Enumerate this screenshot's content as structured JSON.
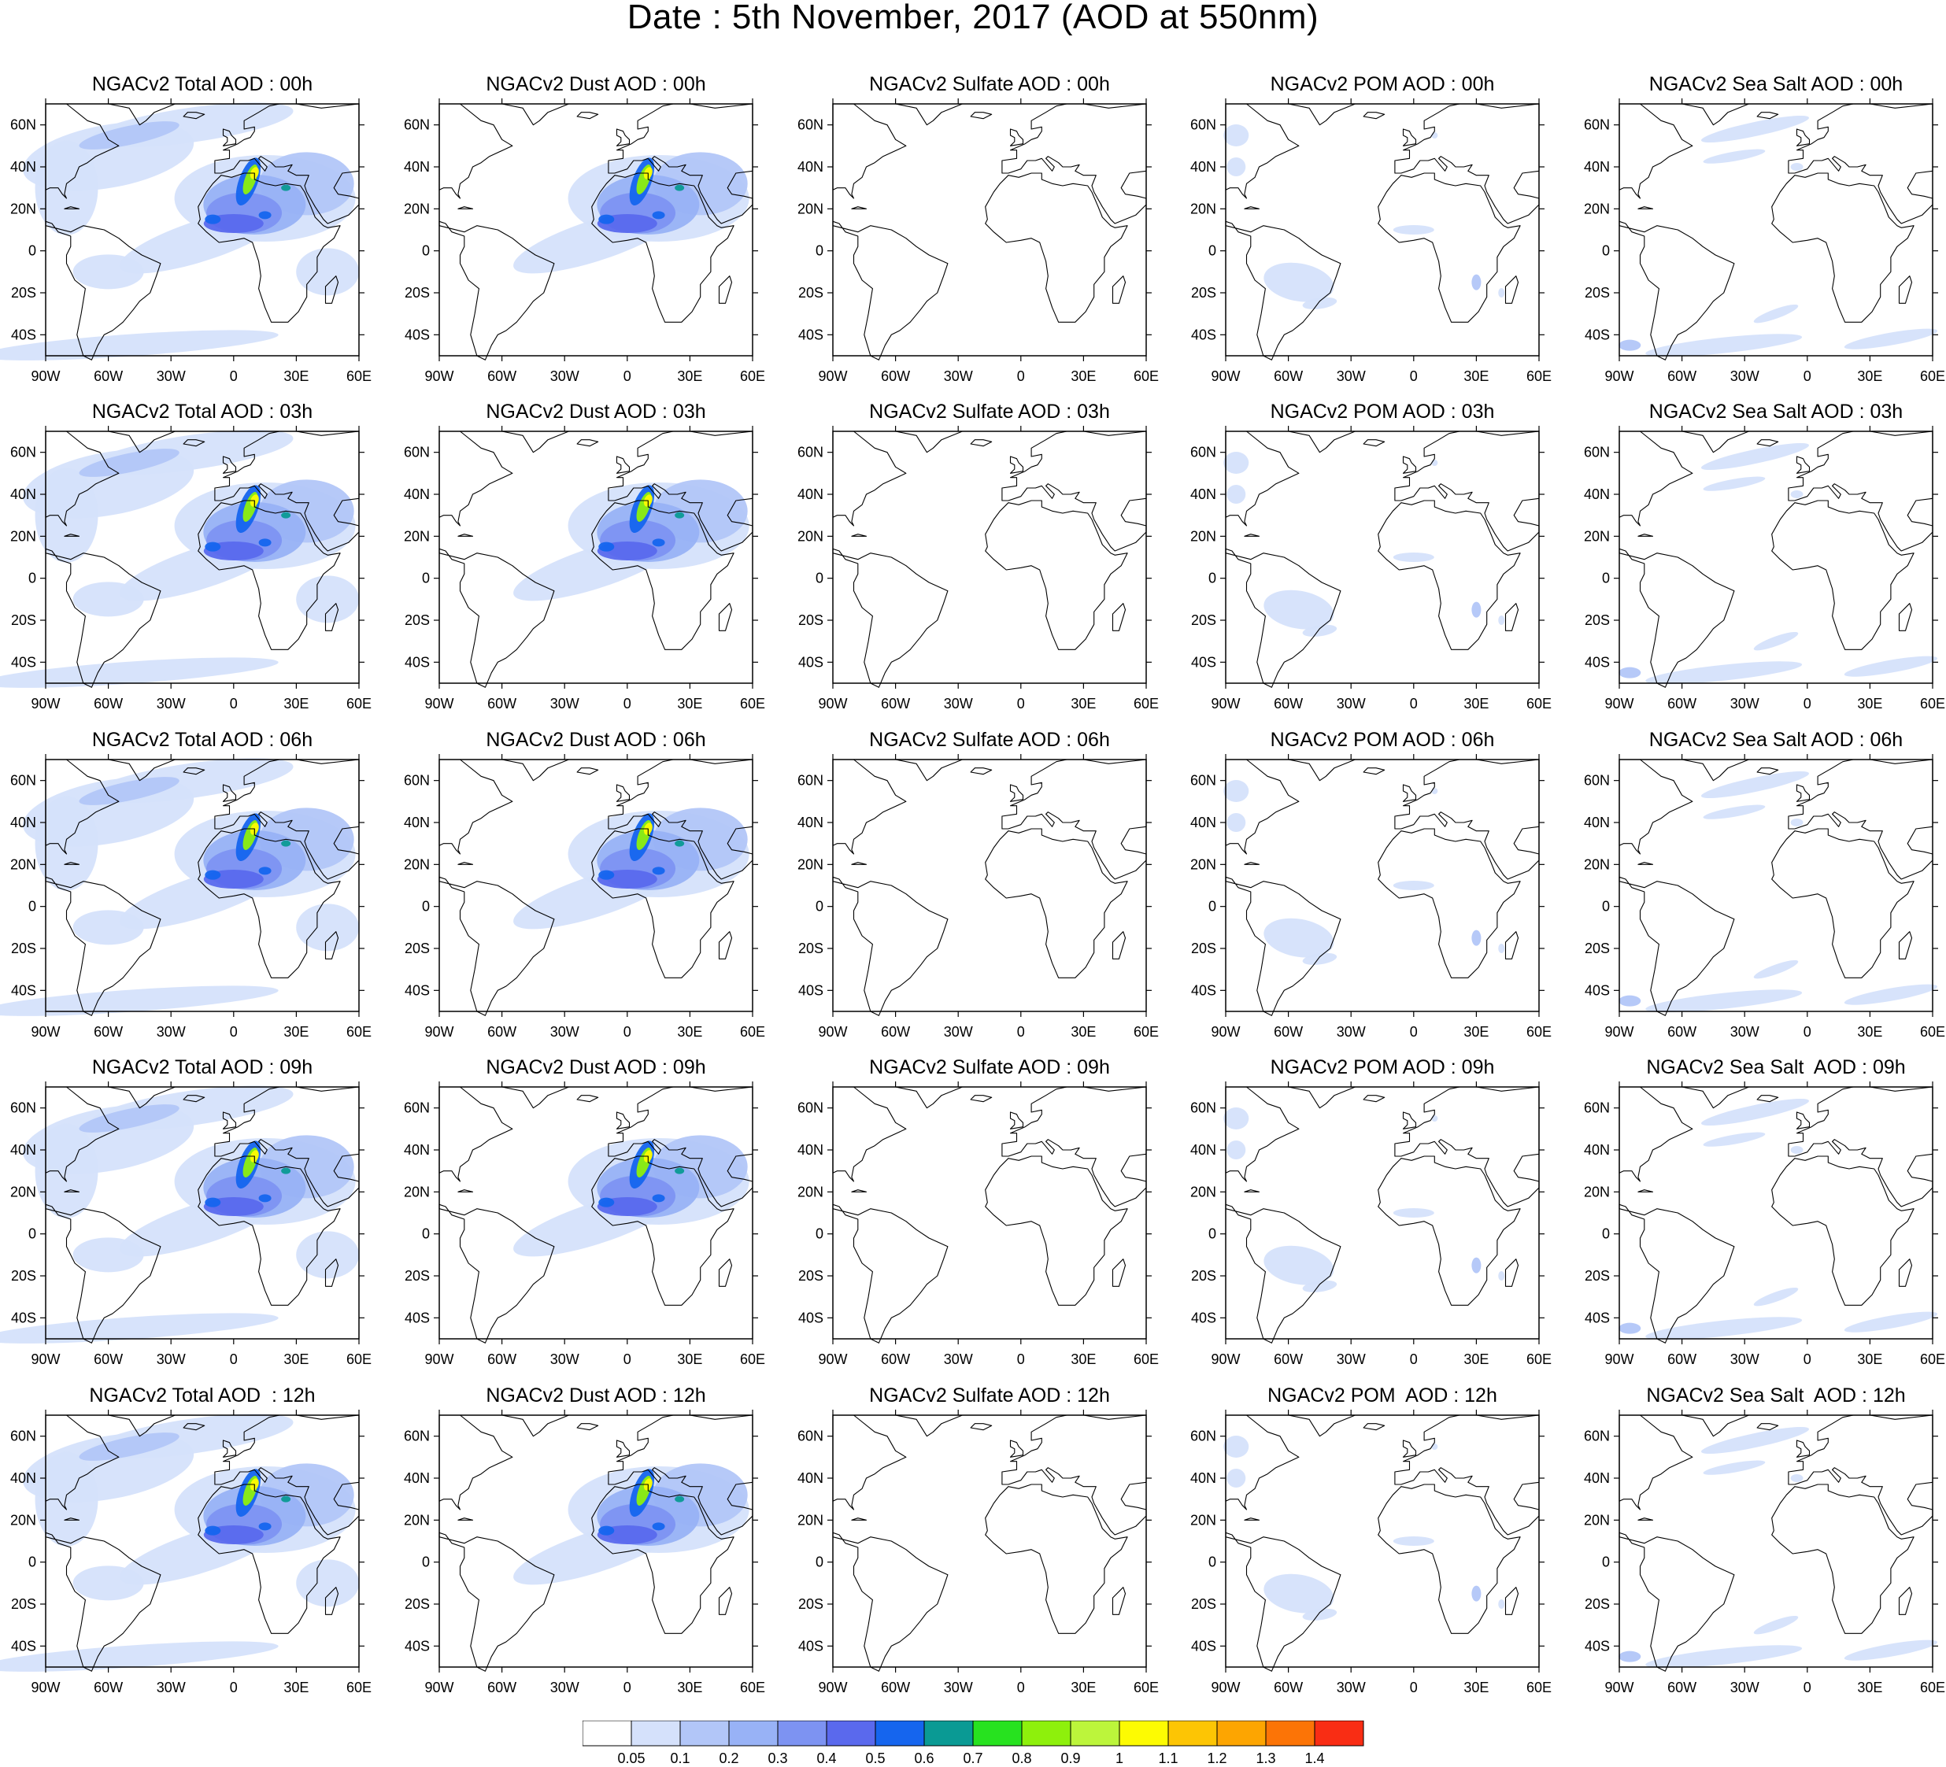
{
  "title": "Date : 5th November, 2017 (AOD at 550nm)",
  "map": {
    "lon_ticks": [
      "90W",
      "60W",
      "30W",
      "0",
      "30E",
      "60E"
    ],
    "lat_ticks": [
      "60N",
      "40N",
      "20N",
      "0",
      "20S",
      "40S"
    ],
    "lon_range": [
      -90,
      60
    ],
    "lat_range": [
      -50,
      70
    ]
  },
  "panels": [
    [
      {
        "id": "total-00",
        "title": "NGACv2 Total AOD : 00h",
        "species": "total"
      },
      {
        "id": "dust-00",
        "title": "NGACv2 Dust AOD : 00h",
        "species": "dust"
      },
      {
        "id": "sulfate-00",
        "title": "NGACv2 Sulfate AOD : 00h",
        "species": "sulfate"
      },
      {
        "id": "pom-00",
        "title": "NGACv2 POM AOD : 00h",
        "species": "pom"
      },
      {
        "id": "seasalt-00",
        "title": "NGACv2 Sea Salt AOD : 00h",
        "species": "seasalt"
      }
    ],
    [
      {
        "id": "total-03",
        "title": "NGACv2 Total AOD : 03h",
        "species": "total"
      },
      {
        "id": "dust-03",
        "title": "NGACv2 Dust AOD : 03h",
        "species": "dust"
      },
      {
        "id": "sulfate-03",
        "title": "NGACv2 Sulfate AOD : 03h",
        "species": "sulfate"
      },
      {
        "id": "pom-03",
        "title": "NGACv2 POM AOD : 03h",
        "species": "pom"
      },
      {
        "id": "seasalt-03",
        "title": "NGACv2 Sea Salt AOD : 03h",
        "species": "seasalt"
      }
    ],
    [
      {
        "id": "total-06",
        "title": "NGACv2 Total AOD : 06h",
        "species": "total"
      },
      {
        "id": "dust-06",
        "title": "NGACv2 Dust AOD : 06h",
        "species": "dust"
      },
      {
        "id": "sulfate-06",
        "title": "NGACv2 Sulfate AOD : 06h",
        "species": "sulfate"
      },
      {
        "id": "pom-06",
        "title": "NGACv2 POM AOD : 06h",
        "species": "pom"
      },
      {
        "id": "seasalt-06",
        "title": "NGACv2 Sea Salt AOD : 06h",
        "species": "seasalt"
      }
    ],
    [
      {
        "id": "total-09",
        "title": "NGACv2 Total AOD : 09h",
        "species": "total"
      },
      {
        "id": "dust-09",
        "title": "NGACv2 Dust AOD : 09h",
        "species": "dust"
      },
      {
        "id": "sulfate-09",
        "title": "NGACv2 Sulfate AOD : 09h",
        "species": "sulfate"
      },
      {
        "id": "pom-09",
        "title": "NGACv2 POM AOD : 09h",
        "species": "pom"
      },
      {
        "id": "seasalt-09",
        "title": "NGACv2 Sea Salt  AOD : 09h",
        "species": "seasalt"
      }
    ],
    [
      {
        "id": "total-12",
        "title": "NGACv2 Total AOD  : 12h",
        "species": "total"
      },
      {
        "id": "dust-12",
        "title": "NGACv2 Dust AOD : 12h",
        "species": "dust"
      },
      {
        "id": "sulfate-12",
        "title": "NGACv2 Sulfate AOD : 12h",
        "species": "sulfate"
      },
      {
        "id": "pom-12",
        "title": "NGACv2 POM  AOD : 12h",
        "species": "pom"
      },
      {
        "id": "seasalt-12",
        "title": "NGACv2 Sea Salt  AOD : 12h",
        "species": "seasalt"
      }
    ]
  ],
  "colorbar": {
    "labels": [
      "0.05",
      "0.1",
      "0.2",
      "0.3",
      "0.4",
      "0.5",
      "0.6",
      "0.7",
      "0.8",
      "0.9",
      "1",
      "1.1",
      "1.2",
      "1.3",
      "1.4"
    ],
    "colors": [
      "#ffffff",
      "#d5e1fb",
      "#b2c6f8",
      "#98b2f6",
      "#7d93f2",
      "#5a69ed",
      "#1565ee",
      "#0a9a94",
      "#27e21f",
      "#8ef00c",
      "#bcf53b",
      "#fdfb02",
      "#fdc504",
      "#fda501",
      "#fc7406",
      "#f92d14"
    ]
  }
}
